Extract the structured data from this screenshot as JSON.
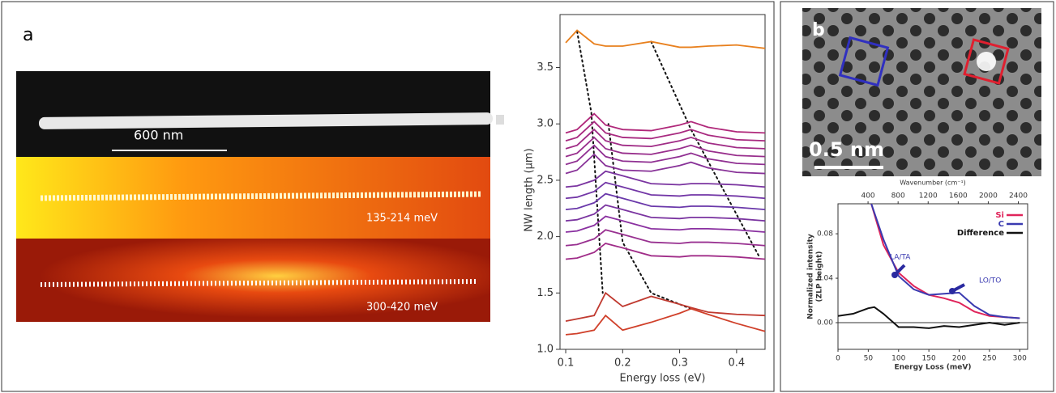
{
  "panel_a": {
    "label": "a",
    "scale_bar": "600 nm",
    "windows": [
      "135-214 meV",
      "300-420 meV"
    ]
  },
  "panel_b": {
    "label": "b",
    "scale_bar": "0.5 nm"
  },
  "chart_data": [
    {
      "type": "line",
      "x_label": "Energy loss (eV)",
      "y_label": "NW length (μm)",
      "xlim": [
        0.09,
        0.45
      ],
      "ylim": [
        1.0,
        3.97
      ],
      "xticks": [
        0.1,
        0.2,
        0.3,
        0.4
      ],
      "yticks": [
        {
          "value": 1,
          "label": "1.0"
        },
        {
          "value": 1.5,
          "label": "1.5"
        },
        {
          "value": 2,
          "label": "2.0"
        },
        {
          "value": 2.5,
          "label": "2.5"
        },
        {
          "value": 3,
          "label": "3.0"
        },
        {
          "value": 3.5,
          "label": "3.5"
        }
      ],
      "x": [
        0.1,
        0.12,
        0.15,
        0.17,
        0.2,
        0.25,
        0.3,
        0.32,
        0.35,
        0.4,
        0.45
      ],
      "series": [
        {
          "color": "#e8801e",
          "values": [
            3.72,
            3.83,
            3.71,
            3.69,
            3.69,
            3.73,
            3.68,
            3.68,
            3.69,
            3.7,
            3.67
          ]
        },
        {
          "color": "#b0287a",
          "values": [
            2.92,
            2.95,
            3.09,
            2.99,
            2.95,
            2.94,
            2.99,
            3.02,
            2.97,
            2.93,
            2.92
          ]
        },
        {
          "color": "#a82a80",
          "values": [
            2.85,
            2.88,
            3.02,
            2.92,
            2.88,
            2.87,
            2.92,
            2.95,
            2.9,
            2.86,
            2.85
          ]
        },
        {
          "color": "#a02c86",
          "values": [
            2.78,
            2.81,
            2.95,
            2.85,
            2.81,
            2.8,
            2.85,
            2.88,
            2.83,
            2.79,
            2.78
          ]
        },
        {
          "color": "#982e8c",
          "values": [
            2.71,
            2.74,
            2.88,
            2.78,
            2.74,
            2.73,
            2.78,
            2.81,
            2.76,
            2.72,
            2.71
          ]
        },
        {
          "color": "#903092",
          "values": [
            2.64,
            2.67,
            2.81,
            2.71,
            2.67,
            2.66,
            2.71,
            2.74,
            2.69,
            2.65,
            2.64
          ]
        },
        {
          "color": "#883298",
          "values": [
            2.56,
            2.59,
            2.73,
            2.63,
            2.59,
            2.58,
            2.63,
            2.66,
            2.61,
            2.57,
            2.56
          ]
        },
        {
          "color": "#7a34a0",
          "values": [
            2.44,
            2.45,
            2.5,
            2.58,
            2.54,
            2.47,
            2.46,
            2.47,
            2.47,
            2.46,
            2.44
          ]
        },
        {
          "color": "#7236a6",
          "values": [
            2.34,
            2.35,
            2.4,
            2.48,
            2.44,
            2.37,
            2.36,
            2.37,
            2.37,
            2.36,
            2.34
          ]
        },
        {
          "color": "#6a38aa",
          "values": [
            2.24,
            2.25,
            2.3,
            2.38,
            2.34,
            2.27,
            2.26,
            2.27,
            2.27,
            2.26,
            2.24
          ]
        },
        {
          "color": "#7a34a0",
          "values": [
            2.14,
            2.15,
            2.2,
            2.28,
            2.24,
            2.17,
            2.16,
            2.17,
            2.17,
            2.16,
            2.14
          ]
        },
        {
          "color": "#8a30a0",
          "values": [
            2.04,
            2.05,
            2.1,
            2.18,
            2.14,
            2.07,
            2.06,
            2.07,
            2.07,
            2.06,
            2.04
          ]
        },
        {
          "color": "#983090",
          "values": [
            1.92,
            1.93,
            1.98,
            2.06,
            2.02,
            1.95,
            1.94,
            1.95,
            1.95,
            1.94,
            1.92
          ]
        },
        {
          "color": "#a02c88",
          "values": [
            1.8,
            1.81,
            1.86,
            1.94,
            1.9,
            1.83,
            1.82,
            1.83,
            1.83,
            1.82,
            1.8
          ]
        },
        {
          "color": "#c03a30",
          "values": [
            1.25,
            1.27,
            1.3,
            1.5,
            1.38,
            1.47,
            1.4,
            1.37,
            1.33,
            1.31,
            1.3
          ]
        },
        {
          "color": "#d0402a",
          "values": [
            1.13,
            1.14,
            1.17,
            1.3,
            1.17,
            1.24,
            1.32,
            1.36,
            1.31,
            1.23,
            1.16
          ]
        }
      ],
      "guides": [
        {
          "x": [
            0.12,
            0.145,
            0.165
          ],
          "y": [
            3.82,
            3.1,
            1.5
          ]
        },
        {
          "x": [
            0.175,
            0.2,
            0.25,
            0.32
          ],
          "y": [
            3.0,
            1.95,
            1.5,
            1.36
          ]
        },
        {
          "x": [
            0.25,
            0.32,
            0.44
          ],
          "y": [
            3.73,
            2.95,
            1.82
          ]
        }
      ]
    },
    {
      "type": "line",
      "x_label": "Energy Loss (meV)",
      "y_label": [
        "Normalized intensity",
        "(ZLP height)"
      ],
      "x2_label": "Wavenumber (cm⁻¹)",
      "xlim": [
        0,
        313
      ],
      "ylim": [
        -0.024,
        0.107
      ],
      "x2lim": [
        0,
        2524
      ],
      "xticks": [
        0,
        50,
        100,
        150,
        200,
        250,
        300
      ],
      "x2ticks": [
        400,
        800,
        1200,
        1600,
        2000,
        2400
      ],
      "yticks": [
        {
          "value": 0,
          "label": "0.00"
        },
        {
          "value": 0.04,
          "label": "0.04"
        },
        {
          "value": 0.08,
          "label": "0.08"
        }
      ],
      "legend": "upper right",
      "series": [
        {
          "name": "Si",
          "color": "#e0245a",
          "x": [
            55,
            75,
            100,
            125,
            150,
            175,
            200,
            225,
            250,
            275,
            300
          ],
          "values": [
            0.107,
            0.07,
            0.045,
            0.033,
            0.025,
            0.022,
            0.018,
            0.01,
            0.006,
            0.005,
            0.004
          ]
        },
        {
          "name": "C",
          "color": "#3a3ab0",
          "x": [
            55,
            75,
            100,
            125,
            150,
            175,
            200,
            225,
            250,
            275,
            300
          ],
          "values": [
            0.107,
            0.075,
            0.042,
            0.03,
            0.025,
            0.026,
            0.027,
            0.015,
            0.007,
            0.005,
            0.004
          ]
        },
        {
          "name": "Difference",
          "color": "#111111",
          "x": [
            0,
            25,
            50,
            60,
            75,
            100,
            125,
            150,
            175,
            200,
            225,
            250,
            275,
            300
          ],
          "values": [
            0.006,
            0.008,
            0.013,
            0.014,
            0.008,
            -0.004,
            -0.004,
            -0.005,
            -0.003,
            -0.004,
            -0.002,
            0.0,
            -0.002,
            0.0
          ]
        }
      ],
      "annotations": [
        "LA/TA",
        "LO/TO"
      ]
    }
  ]
}
